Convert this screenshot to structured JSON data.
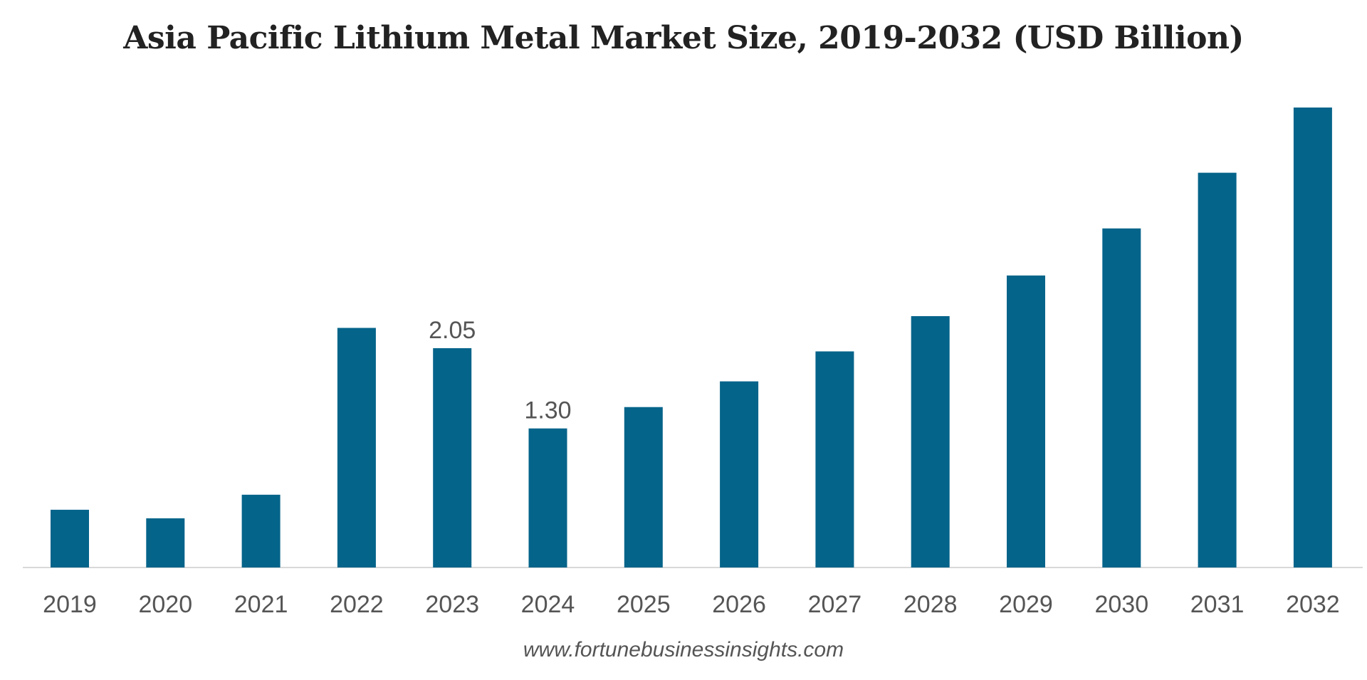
{
  "chart_data": {
    "type": "bar",
    "title": "Asia Pacific Lithium Metal Market Size, 2019-2032 (USD Billion)",
    "xlabel": "",
    "ylabel": "",
    "categories": [
      "2019",
      "2020",
      "2021",
      "2022",
      "2023",
      "2024",
      "2025",
      "2026",
      "2027",
      "2028",
      "2029",
      "2030",
      "2031",
      "2032"
    ],
    "series": [
      {
        "name": "Asia Pacific Lithium Metal Market Size (USD Billion)",
        "values": [
          0.54,
          0.46,
          0.68,
          2.24,
          2.05,
          1.3,
          1.5,
          1.74,
          2.02,
          2.35,
          2.73,
          3.17,
          3.69,
          4.3
        ]
      }
    ],
    "data_labels": [
      {
        "category": "2023",
        "text": "2.05"
      },
      {
        "category": "2024",
        "text": "1.30"
      }
    ],
    "ylim": [
      0,
      4.3
    ],
    "grid": false,
    "legend": "none",
    "bar_color": "#05648A",
    "axis_color": "#d9d9d9"
  },
  "source": "www.fortunebusinessinsights.com"
}
